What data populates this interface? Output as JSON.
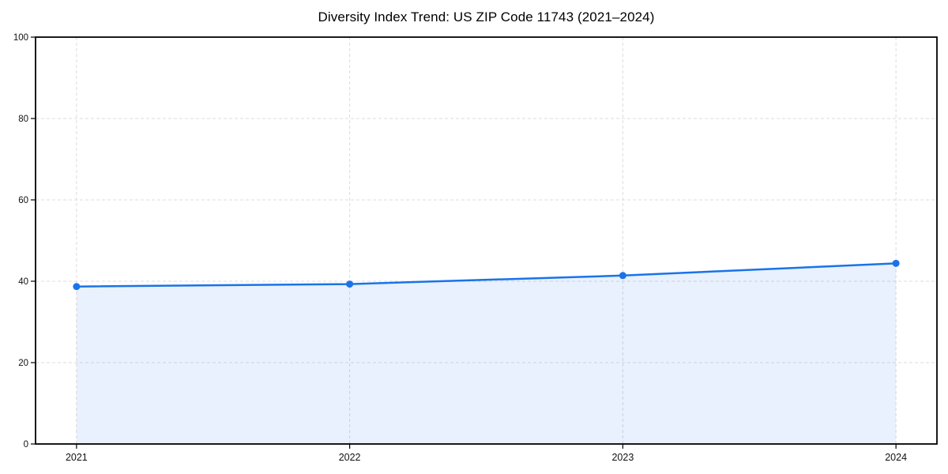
{
  "chart_data": {
    "type": "area",
    "title": "Diversity Index Trend: US ZIP Code 11743 (2021–2024)",
    "xlabel": "",
    "ylabel": "",
    "x": [
      2021,
      2022,
      2023,
      2024
    ],
    "series": [
      {
        "name": "Diversity Index",
        "values": [
          38.7,
          39.3,
          41.4,
          44.4
        ]
      }
    ],
    "xticks": [
      2021,
      2022,
      2023,
      2024
    ],
    "yticks": [
      0,
      20,
      40,
      60,
      80,
      100
    ],
    "ylim": [
      0,
      100
    ],
    "x_margin_frac": 0.05,
    "grid": "dashed",
    "legend": "none",
    "colors": {
      "line": "#1a73e8",
      "marker": "#1a73e8",
      "fill": "rgba(26,115,232,0.10)",
      "grid": "#dcdcdc",
      "axis": "#000000",
      "tick_text": "#111111",
      "background": "#ffffff"
    }
  }
}
